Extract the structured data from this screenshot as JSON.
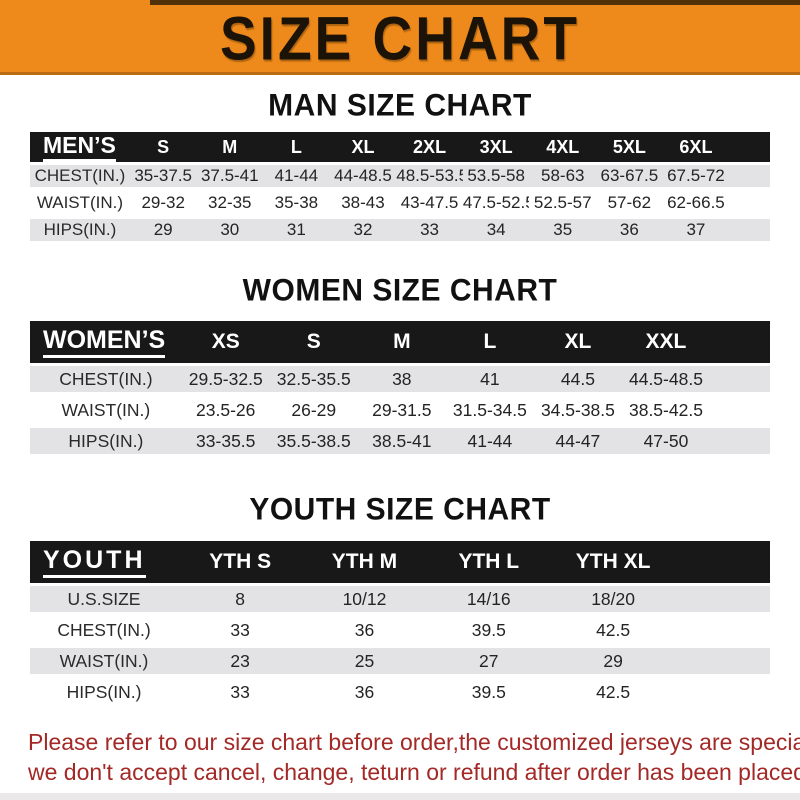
{
  "banner": {
    "title": "SIZE CHART"
  },
  "colors": {
    "banner_orange": "#ee8a1b",
    "header_bar_black": "#181818",
    "row_gray": "#e3e3e5",
    "footer_red": "#a32927"
  },
  "sections": [
    {
      "id": "men",
      "title": "MAN SIZE CHART",
      "header_label": "MEN’S",
      "columns": [
        "S",
        "M",
        "L",
        "XL",
        "2XL",
        "3XL",
        "4XL",
        "5XL",
        "6XL"
      ],
      "rows": [
        {
          "label": "CHEST(IN.)",
          "values": [
            "35-37.5",
            "37.5-41",
            "41-44",
            "44-48.5",
            "48.5-53.5",
            "53.5-58",
            "58-63",
            "63-67.5",
            "67.5-72"
          ]
        },
        {
          "label": "WAIST(IN.)",
          "values": [
            "29-32",
            "32-35",
            "35-38",
            "38-43",
            "43-47.5",
            "47.5-52.5",
            "52.5-57",
            "57-62",
            "62-66.5"
          ]
        },
        {
          "label": "HIPS(IN.)",
          "values": [
            "29",
            "30",
            "31",
            "32",
            "33",
            "34",
            "35",
            "36",
            "37"
          ]
        }
      ]
    },
    {
      "id": "women",
      "title": "WOMEN SIZE CHART",
      "header_label": "WOMEN’S",
      "columns": [
        "XS",
        "S",
        "M",
        "L",
        "XL",
        "XXL"
      ],
      "rows": [
        {
          "label": "CHEST(IN.)",
          "values": [
            "29.5-32.5",
            "32.5-35.5",
            "38",
            "41",
            "44.5",
            "44.5-48.5"
          ]
        },
        {
          "label": "WAIST(IN.)",
          "values": [
            "23.5-26",
            "26-29",
            "29-31.5",
            "31.5-34.5",
            "34.5-38.5",
            "38.5-42.5"
          ]
        },
        {
          "label": "HIPS(IN.)",
          "values": [
            "33-35.5",
            "35.5-38.5",
            "38.5-41",
            "41-44",
            "44-47",
            "47-50"
          ]
        }
      ]
    },
    {
      "id": "youth",
      "title": "YOUTH SIZE CHART",
      "header_label": "YOUTH",
      "columns": [
        "YTH S",
        "YTH M",
        "YTH L",
        "YTH XL"
      ],
      "rows": [
        {
          "label": "U.S.SIZE",
          "values": [
            "8",
            "10/12",
            "14/16",
            "18/20"
          ]
        },
        {
          "label": "CHEST(IN.)",
          "values": [
            "33",
            "36",
            "39.5",
            "42.5"
          ]
        },
        {
          "label": "WAIST(IN.)",
          "values": [
            "23",
            "25",
            "27",
            "29"
          ]
        },
        {
          "label": "HIPS(IN.)",
          "values": [
            "33",
            "36",
            "39.5",
            "42.5"
          ]
        }
      ]
    }
  ],
  "footer": {
    "line1": "Please refer to our size chart before order,the customized jerseys are special products,",
    "line2": "we don't accept cancel, change, teturn or refund after order has been placed!"
  }
}
